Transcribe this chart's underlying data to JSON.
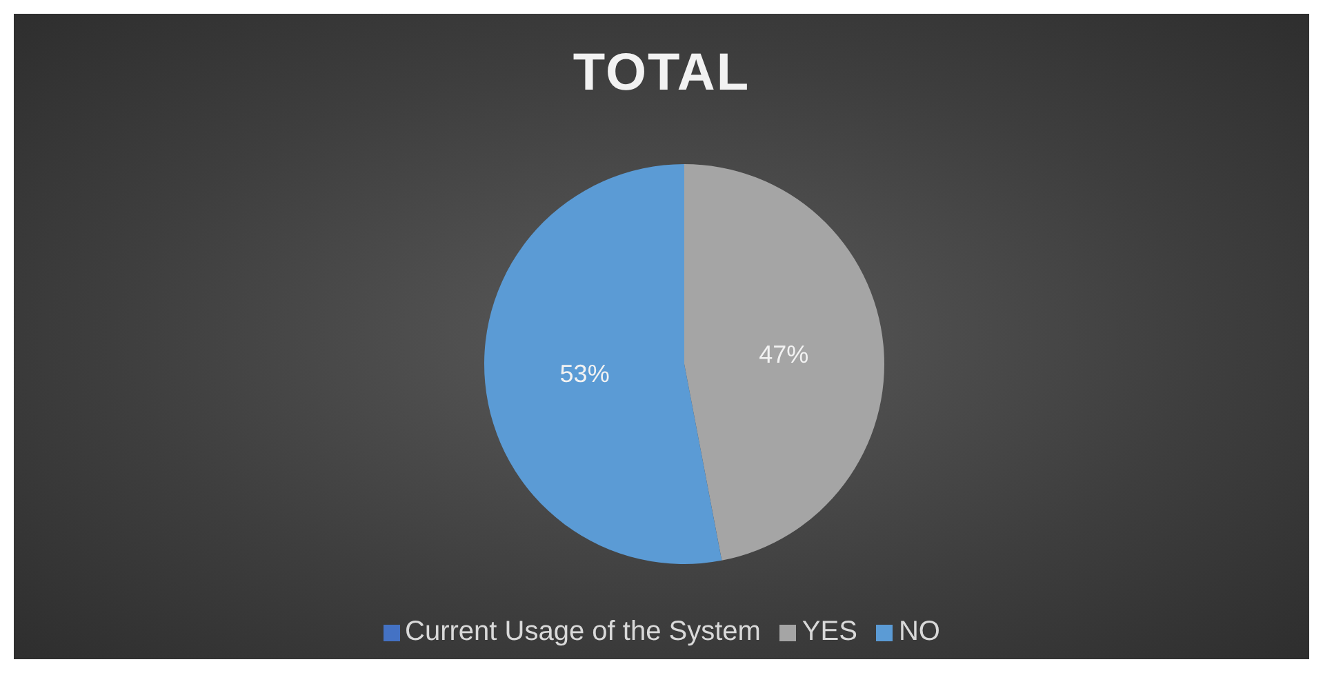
{
  "chart_data": {
    "type": "pie",
    "title": "TOTAL",
    "categories": [
      "Current Usage of the System",
      "YES",
      "NO"
    ],
    "values": [
      0,
      47,
      53
    ],
    "colors": [
      "#4472c4",
      "#a5a5a5",
      "#5b9bd5"
    ],
    "value_labels": [
      null,
      "47%",
      "53%"
    ],
    "legend": "bottom"
  }
}
